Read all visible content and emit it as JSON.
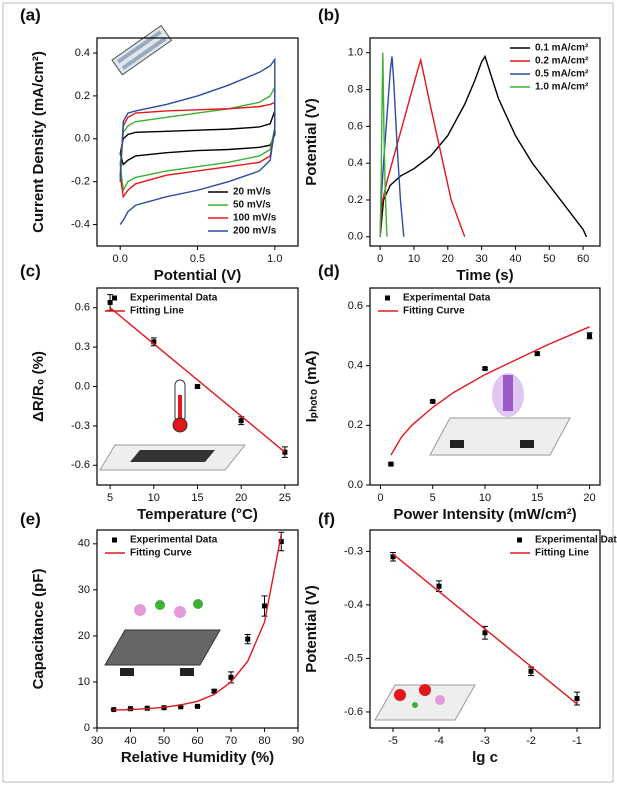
{
  "chart_data": [
    {
      "type": "line",
      "panel_label": "(a)",
      "x_label": "Potential (V)",
      "y_label": "Current Density (mA/cm²)",
      "xlim": [
        -0.15,
        1.15
      ],
      "xticks": [
        {
          "value": 0,
          "label": "0.0"
        },
        0.5,
        {
          "value": 1,
          "label": "1.0"
        }
      ],
      "ylim": [
        -0.5,
        0.47
      ],
      "yticks": [
        -0.4,
        -0.2,
        {
          "value": 0,
          "label": "0.0"
        },
        0.2,
        0.4
      ],
      "legend": "lower right",
      "series": [
        {
          "name": "20 mV/s",
          "color": "#000000",
          "x": [
            0,
            0.02,
            0.05,
            0.1,
            0.3,
            0.5,
            0.7,
            0.9,
            0.97,
            1.0,
            1.0,
            0.97,
            0.9,
            0.7,
            0.5,
            0.3,
            0.1,
            0.05,
            0.02,
            0
          ],
          "values": [
            -0.07,
            0.0,
            0.02,
            0.03,
            0.035,
            0.04,
            0.045,
            0.055,
            0.07,
            0.13,
            0.02,
            -0.03,
            -0.04,
            -0.05,
            -0.055,
            -0.065,
            -0.08,
            -0.1,
            -0.12,
            -0.07
          ]
        },
        {
          "name": "50 mV/s",
          "color": "#3cb034",
          "x": [
            0,
            0.02,
            0.05,
            0.1,
            0.3,
            0.5,
            0.7,
            0.9,
            0.97,
            1.0,
            1.0,
            0.97,
            0.9,
            0.7,
            0.5,
            0.3,
            0.1,
            0.05,
            0.02,
            0
          ],
          "values": [
            -0.12,
            0.03,
            0.06,
            0.08,
            0.1,
            0.12,
            0.14,
            0.17,
            0.2,
            0.24,
            0.05,
            -0.05,
            -0.08,
            -0.11,
            -0.13,
            -0.15,
            -0.18,
            -0.2,
            -0.24,
            -0.12
          ]
        },
        {
          "name": "100 mV/s",
          "color": "#e3161b",
          "x": [
            0,
            0.02,
            0.05,
            0.1,
            0.3,
            0.5,
            0.7,
            0.9,
            0.97,
            1.0,
            1.0,
            0.97,
            0.9,
            0.7,
            0.5,
            0.3,
            0.1,
            0.05,
            0.02,
            0
          ],
          "values": [
            -0.17,
            0.06,
            0.1,
            0.12,
            0.13,
            0.135,
            0.14,
            0.15,
            0.16,
            0.17,
            0.04,
            -0.08,
            -0.11,
            -0.13,
            -0.15,
            -0.17,
            -0.21,
            -0.24,
            -0.27,
            -0.17
          ]
        },
        {
          "name": "200 mV/s",
          "color": "#2b4ba0",
          "x": [
            0,
            0.02,
            0.05,
            0.1,
            0.3,
            0.5,
            0.7,
            0.9,
            0.97,
            1.0,
            1.0,
            0.97,
            0.9,
            0.7,
            0.5,
            0.3,
            0.1,
            0.05,
            0.02,
            0
          ],
          "values": [
            -0.2,
            0.08,
            0.12,
            0.13,
            0.16,
            0.2,
            0.25,
            0.31,
            0.34,
            0.37,
            0.05,
            -0.1,
            -0.15,
            -0.2,
            -0.24,
            -0.27,
            -0.31,
            -0.34,
            -0.38,
            -0.4
          ]
        }
      ]
    },
    {
      "type": "line",
      "panel_label": "(b)",
      "x_label": "Time (s)",
      "y_label": "Potential (V)",
      "xlim": [
        -3,
        65
      ],
      "xticks": [
        0,
        10,
        20,
        30,
        40,
        50,
        60
      ],
      "ylim": [
        -0.05,
        1.08
      ],
      "yticks": [
        {
          "value": 0,
          "label": "0.0"
        },
        0.2,
        0.4,
        0.6,
        0.8,
        {
          "value": 1,
          "label": "1.0"
        }
      ],
      "legend": "upper right",
      "series": [
        {
          "name": "0.1 mA/cm²",
          "color": "#000000",
          "x": [
            0,
            1,
            3,
            6,
            10,
            15,
            20,
            25,
            28,
            30,
            31,
            35,
            40,
            45,
            50,
            55,
            60,
            61
          ],
          "values": [
            0,
            0.2,
            0.28,
            0.33,
            0.37,
            0.44,
            0.55,
            0.72,
            0.85,
            0.95,
            0.98,
            0.75,
            0.55,
            0.4,
            0.28,
            0.16,
            0.04,
            0
          ]
        },
        {
          "name": "0.2 mA/cm²",
          "color": "#e3161b",
          "x": [
            0,
            0.5,
            2,
            5,
            8,
            11,
            12,
            15,
            18,
            21,
            24,
            25
          ],
          "values": [
            0,
            0.18,
            0.3,
            0.5,
            0.7,
            0.9,
            0.96,
            0.7,
            0.45,
            0.2,
            0.05,
            0
          ]
        },
        {
          "name": "0.5 mA/cm²",
          "color": "#2b4ba0",
          "x": [
            0,
            0.3,
            1,
            2,
            3,
            3.5,
            4,
            5,
            6,
            7
          ],
          "values": [
            0,
            0.2,
            0.4,
            0.65,
            0.9,
            0.98,
            0.85,
            0.5,
            0.2,
            0
          ]
        },
        {
          "name": "1.0 mA/cm²",
          "color": "#3cb034",
          "x": [
            0,
            0.3,
            0.5,
            0.8,
            1.1,
            1.5,
            2
          ],
          "values": [
            0,
            0.3,
            0.65,
            1.0,
            0.6,
            0.25,
            0
          ]
        }
      ]
    },
    {
      "type": "scatter",
      "panel_label": "(c)",
      "x_label": "Temperature (°C)",
      "y_label": "ΔR/R₀ (%)",
      "xlim": [
        3.5,
        26.5
      ],
      "xticks": [
        5,
        10,
        15,
        20,
        25
      ],
      "ylim": [
        -0.75,
        0.75
      ],
      "yticks": [
        -0.6,
        -0.3,
        {
          "value": 0,
          "label": "0.0"
        },
        0.3,
        0.6
      ],
      "legend": "upper left",
      "series": [
        {
          "name": "Experimental Data",
          "type": "scatter",
          "color": "#000000",
          "x": [
            5,
            10,
            15,
            20,
            25
          ],
          "values": [
            0.64,
            0.34,
            0.0,
            -0.26,
            -0.5
          ],
          "errors": [
            0.06,
            0.03,
            0.01,
            0.03,
            0.04
          ]
        },
        {
          "name": "Fitting Line",
          "type": "line",
          "color": "#e3161b",
          "x": [
            5,
            25
          ],
          "values": [
            0.6,
            -0.5
          ]
        }
      ]
    },
    {
      "type": "scatter",
      "panel_label": "(d)",
      "x_label": "Power Intensity (mW/cm²)",
      "y_label": "Iₚₕₒₜₒ (mA)",
      "xlim": [
        -1,
        21
      ],
      "xticks": [
        0,
        5,
        10,
        15,
        20
      ],
      "ylim": [
        0,
        0.66
      ],
      "yticks": [
        {
          "value": 0,
          "label": "0.0"
        },
        0.2,
        0.4,
        0.6
      ],
      "legend": "upper left",
      "series": [
        {
          "name": "Experimental Data",
          "type": "scatter",
          "color": "#000000",
          "x": [
            1,
            5,
            10,
            15,
            20
          ],
          "values": [
            0.07,
            0.28,
            0.39,
            0.44,
            0.5
          ],
          "errors": [
            0.003,
            0.003,
            0.003,
            0.005,
            0.01
          ]
        },
        {
          "name": "Fitting Curve",
          "type": "line",
          "color": "#e3161b",
          "x": [
            1,
            2,
            3,
            5,
            7,
            10,
            13,
            16,
            20
          ],
          "values": [
            0.1,
            0.16,
            0.2,
            0.26,
            0.31,
            0.37,
            0.42,
            0.47,
            0.53
          ]
        }
      ]
    },
    {
      "type": "scatter",
      "panel_label": "(e)",
      "x_label": "Relative Humidity (%)",
      "y_label": "Capacitance (pF)",
      "xlim": [
        30,
        90
      ],
      "xticks": [
        30,
        40,
        50,
        60,
        70,
        80,
        90
      ],
      "ylim": [
        0,
        43
      ],
      "yticks": [
        0,
        10,
        20,
        30,
        40
      ],
      "legend": "upper left",
      "series": [
        {
          "name": "Experimental Data",
          "type": "scatter",
          "color": "#000000",
          "x": [
            35,
            40,
            45,
            50,
            55,
            60,
            65,
            70,
            75,
            80,
            85
          ],
          "values": [
            4,
            4.2,
            4.3,
            4.4,
            4.6,
            4.7,
            8,
            11,
            19.3,
            26.5,
            40.5
          ],
          "errors": [
            0,
            0,
            0,
            0,
            0,
            0,
            0.3,
            1.2,
            1,
            2.2,
            2
          ]
        },
        {
          "name": "Fitting Curve",
          "type": "line",
          "color": "#e3161b",
          "x": [
            35,
            40,
            45,
            50,
            55,
            60,
            65,
            70,
            75,
            80,
            85
          ],
          "values": [
            3.9,
            4.0,
            4.2,
            4.5,
            5.0,
            5.8,
            7.3,
            10,
            14.5,
            23,
            42
          ]
        }
      ]
    },
    {
      "type": "scatter",
      "panel_label": "(f)",
      "x_label": "lg c",
      "y_label": "Potential (V)",
      "xlim": [
        -5.5,
        -0.5
      ],
      "xticks": [
        -5,
        -4,
        -3,
        -2,
        -1
      ],
      "ylim": [
        -0.63,
        -0.26
      ],
      "yticks": [
        -0.6,
        -0.5,
        -0.4,
        -0.3
      ],
      "legend": "upper right",
      "series": [
        {
          "name": "Experimental Data",
          "type": "scatter",
          "color": "#000000",
          "x": [
            -5,
            -4,
            -3,
            -2,
            -1
          ],
          "values": [
            -0.31,
            -0.365,
            -0.452,
            -0.524,
            -0.575
          ],
          "errors": [
            0.008,
            0.01,
            0.012,
            0.008,
            0.012
          ]
        },
        {
          "name": "Fitting Line",
          "type": "line",
          "color": "#e3161b",
          "x": [
            -5,
            -1
          ],
          "values": [
            -0.305,
            -0.585
          ]
        }
      ]
    }
  ]
}
